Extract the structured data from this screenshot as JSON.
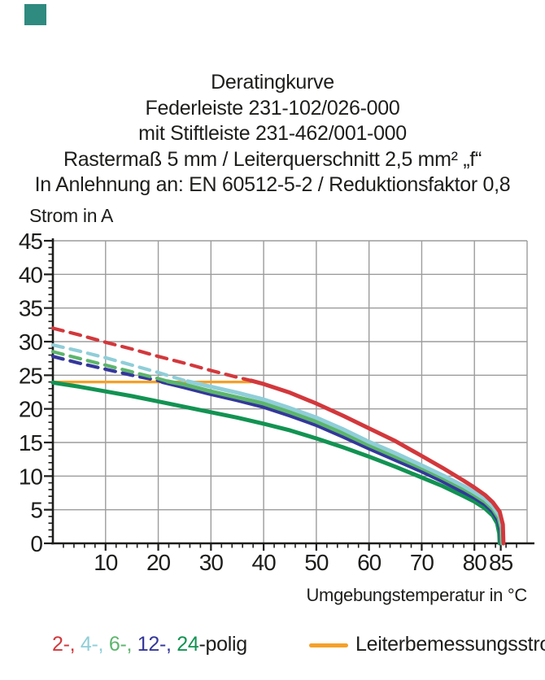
{
  "page": {
    "background": "#ffffff",
    "corner_marker_color": "#2f8a80",
    "text_color": "#1d1d1b"
  },
  "title_block": {
    "lines": [
      "Deratingkurve",
      "Federleiste 231-102/026-000",
      "mit Stiftleiste 231-462/001-000",
      "Rastermaß 5 mm / Leiterquerschnitt 2,5 mm² „f“",
      "In Anlehnung an: EN 60512-5-2 / Reduktionsfaktor 0,8"
    ]
  },
  "chart": {
    "y_axis_title": "Strom in A",
    "x_axis_title": "Umgebungstemperatur in °C"
  },
  "chart_data": {
    "type": "line",
    "title": "Deratingkurve",
    "xlabel": "Umgebungstemperatur in °C",
    "ylabel": "Strom in A",
    "xlim": [
      0,
      90
    ],
    "ylim": [
      0,
      45
    ],
    "x_ticks": [
      10,
      20,
      30,
      40,
      50,
      60,
      70,
      80,
      85
    ],
    "y_ticks": [
      0,
      5,
      10,
      15,
      20,
      25,
      30,
      35,
      40,
      45
    ],
    "x_minor_step": 2,
    "y_minor_step": 1,
    "grid": true,
    "grid_x": [
      10,
      20,
      30,
      40,
      50,
      60,
      70,
      80,
      90
    ],
    "grid_y": [
      5,
      10,
      15,
      20,
      25,
      30,
      35,
      40,
      45
    ],
    "legend_position": "bottom",
    "colors": {
      "grid": "#9c9c9c",
      "axis": "#1d1d1b",
      "red_2polig": "#d2383c",
      "cyan_4polig": "#8fced8",
      "green_6polig": "#5cb56c",
      "navy_12polig": "#34379b",
      "darkgreen_24polig": "#129352",
      "orange_rated": "#f5a028"
    },
    "series": [
      {
        "name": "Leiterbemessungsstrom",
        "color": "#f5a028",
        "segments": [
          {
            "style": "solid",
            "width": 3.2,
            "points": [
              [
                0,
                24
              ],
              [
                37.5,
                24
              ]
            ]
          }
        ]
      },
      {
        "name": "24-polig",
        "color": "#129352",
        "segments": [
          {
            "style": "solid",
            "width": 5,
            "points": [
              [
                0,
                23.9
              ],
              [
                5,
                23.3
              ],
              [
                10,
                22.6
              ],
              [
                15,
                21.9
              ],
              [
                20,
                21.1
              ],
              [
                25,
                20.3
              ],
              [
                30,
                19.5
              ],
              [
                35,
                18.7
              ],
              [
                40,
                17.8
              ],
              [
                45,
                16.8
              ],
              [
                50,
                15.6
              ],
              [
                55,
                14.3
              ],
              [
                60,
                12.9
              ],
              [
                65,
                11.4
              ],
              [
                70,
                9.8
              ],
              [
                74,
                8.5
              ],
              [
                78,
                7.0
              ],
              [
                80,
                6.2
              ],
              [
                82,
                5.2
              ],
              [
                83.5,
                4.1
              ],
              [
                84.3,
                3.0
              ],
              [
                84.7,
                1.5
              ],
              [
                84.8,
                0
              ]
            ]
          }
        ]
      },
      {
        "name": "12-polig",
        "color": "#34379b",
        "segments": [
          {
            "style": "dashed",
            "width": 4.2,
            "points": [
              [
                0,
                27.8
              ],
              [
                5,
                26.8
              ],
              [
                10,
                25.9
              ],
              [
                15,
                25.0
              ],
              [
                20,
                24.2
              ],
              [
                20.8,
                24.0
              ]
            ]
          },
          {
            "style": "solid",
            "width": 5,
            "points": [
              [
                20.8,
                24.0
              ],
              [
                25,
                23.2
              ],
              [
                30,
                22.2
              ],
              [
                35,
                21.3
              ],
              [
                40,
                20.3
              ],
              [
                45,
                19.0
              ],
              [
                50,
                17.6
              ],
              [
                55,
                15.9
              ],
              [
                60,
                14.1
              ],
              [
                65,
                12.4
              ],
              [
                70,
                10.7
              ],
              [
                74,
                9.2
              ],
              [
                78,
                7.6
              ],
              [
                80,
                6.8
              ],
              [
                82,
                5.8
              ],
              [
                83.5,
                4.7
              ],
              [
                84.5,
                3.4
              ],
              [
                85.0,
                1.8
              ],
              [
                85.1,
                0
              ]
            ]
          }
        ]
      },
      {
        "name": "6-polig",
        "color": "#5cb56c",
        "segments": [
          {
            "style": "dashed",
            "width": 4.2,
            "points": [
              [
                0,
                28.5
              ],
              [
                5,
                27.5
              ],
              [
                10,
                26.5
              ],
              [
                15,
                25.5
              ],
              [
                20,
                24.5
              ],
              [
                21.8,
                24.1
              ]
            ]
          },
          {
            "style": "solid",
            "width": 5,
            "points": [
              [
                21.8,
                24.1
              ],
              [
                25,
                23.6
              ],
              [
                30,
                22.6
              ],
              [
                35,
                21.7
              ],
              [
                40,
                20.8
              ],
              [
                45,
                19.5
              ],
              [
                50,
                18.1
              ],
              [
                55,
                16.4
              ],
              [
                60,
                14.6
              ],
              [
                65,
                12.9
              ],
              [
                70,
                11.2
              ],
              [
                74,
                9.7
              ],
              [
                78,
                8.1
              ],
              [
                80,
                7.2
              ],
              [
                82,
                6.2
              ],
              [
                83.5,
                5.1
              ],
              [
                84.6,
                3.8
              ],
              [
                85.1,
                2.2
              ],
              [
                85.2,
                0
              ]
            ]
          }
        ]
      },
      {
        "name": "4-polig",
        "color": "#8fced8",
        "segments": [
          {
            "style": "dashed",
            "width": 4.2,
            "points": [
              [
                0,
                29.5
              ],
              [
                5,
                28.6
              ],
              [
                10,
                27.6
              ],
              [
                15,
                26.5
              ],
              [
                20,
                25.4
              ],
              [
                25,
                24.2
              ],
              [
                25.6,
                24.1
              ]
            ]
          },
          {
            "style": "solid",
            "width": 5,
            "points": [
              [
                25.6,
                24.1
              ],
              [
                30,
                23.3
              ],
              [
                35,
                22.4
              ],
              [
                40,
                21.4
              ],
              [
                45,
                20.1
              ],
              [
                50,
                18.7
              ],
              [
                55,
                17.0
              ],
              [
                60,
                15.1
              ],
              [
                65,
                13.4
              ],
              [
                70,
                11.6
              ],
              [
                74,
                10.1
              ],
              [
                78,
                8.5
              ],
              [
                80,
                7.6
              ],
              [
                82,
                6.6
              ],
              [
                83.5,
                5.5
              ],
              [
                84.8,
                4.0
              ],
              [
                85.3,
                2.3
              ],
              [
                85.4,
                0
              ]
            ]
          }
        ]
      },
      {
        "name": "2-polig",
        "color": "#d2383c",
        "segments": [
          {
            "style": "dashed",
            "width": 4.2,
            "points": [
              [
                0,
                32
              ],
              [
                5,
                31
              ],
              [
                10,
                29.9
              ],
              [
                15,
                28.9
              ],
              [
                20,
                27.8
              ],
              [
                25,
                26.8
              ],
              [
                30,
                25.7
              ],
              [
                35,
                24.7
              ],
              [
                37.6,
                24.2
              ]
            ]
          },
          {
            "style": "solid",
            "width": 5,
            "points": [
              [
                37.6,
                24.2
              ],
              [
                40,
                23.7
              ],
              [
                45,
                22.4
              ],
              [
                50,
                20.8
              ],
              [
                55,
                19.0
              ],
              [
                60,
                17.1
              ],
              [
                65,
                15.2
              ],
              [
                70,
                13.0
              ],
              [
                74,
                11.2
              ],
              [
                78,
                9.3
              ],
              [
                80,
                8.3
              ],
              [
                82,
                7.2
              ],
              [
                83.5,
                6.1
              ],
              [
                84.8,
                4.7
              ],
              [
                85.4,
                2.8
              ],
              [
                85.5,
                0
              ]
            ]
          }
        ]
      }
    ]
  },
  "legend": {
    "poles_pieces": [
      {
        "text": "2-, ",
        "color": "#d2383c"
      },
      {
        "text": "4-, ",
        "color": "#8fced8"
      },
      {
        "text": "6-, ",
        "color": "#5cb56c"
      },
      {
        "text": "12-, ",
        "color": "#34379b"
      },
      {
        "text": "24",
        "color": "#129352"
      },
      {
        "text": "-polig",
        "color": "#1d1d1b"
      }
    ],
    "rated": {
      "label": "Leiterbemessungsstrom",
      "swatch_color": "#f5a028"
    }
  }
}
